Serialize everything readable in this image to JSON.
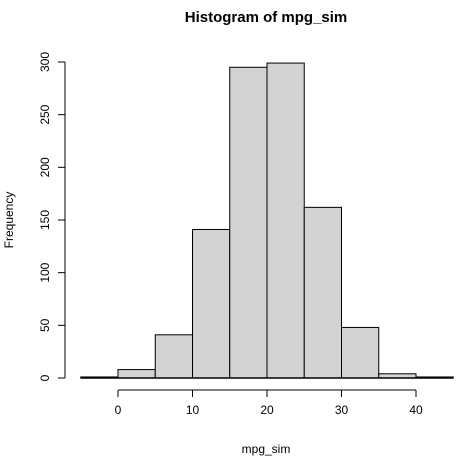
{
  "chart_data": {
    "type": "bar",
    "title": "Histogram of mpg_sim",
    "xlabel": "mpg_sim",
    "ylabel": "Frequency",
    "bins": [
      {
        "start": -5,
        "end": 0,
        "count": 1
      },
      {
        "start": 0,
        "end": 5,
        "count": 8
      },
      {
        "start": 5,
        "end": 10,
        "count": 41
      },
      {
        "start": 10,
        "end": 15,
        "count": 141
      },
      {
        "start": 15,
        "end": 20,
        "count": 295
      },
      {
        "start": 20,
        "end": 25,
        "count": 299
      },
      {
        "start": 25,
        "end": 30,
        "count": 162
      },
      {
        "start": 30,
        "end": 35,
        "count": 48
      },
      {
        "start": 35,
        "end": 40,
        "count": 4
      },
      {
        "start": 40,
        "end": 45,
        "count": 1
      }
    ],
    "xlim": [
      -5,
      45
    ],
    "ylim": [
      0,
      300
    ],
    "xticks": [
      0,
      10,
      20,
      30,
      40
    ],
    "yticks": [
      0,
      50,
      100,
      150,
      200,
      250,
      300
    ],
    "colors": {
      "bar_fill": "#d3d3d3",
      "bar_stroke": "#000000"
    },
    "grid": false,
    "legend": "none"
  }
}
